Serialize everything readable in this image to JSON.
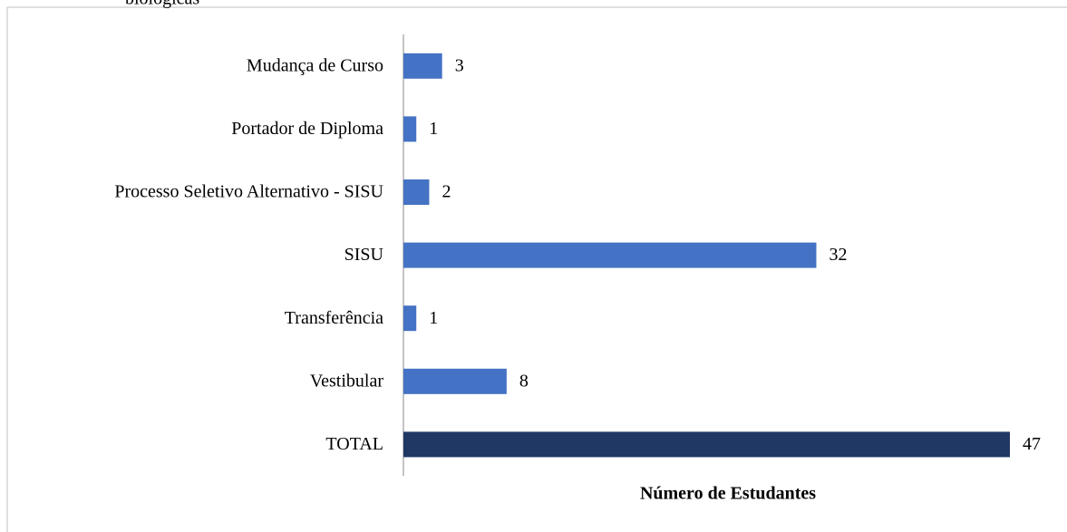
{
  "caption": "biológicas",
  "chart_data": {
    "type": "hbar",
    "xlabel": "Número de Estudantes",
    "categories": [
      "Mudança de Curso",
      "Portador de Diploma",
      "Processo Seletivo Alternativo - SISU",
      "SISU",
      "Transferência",
      "Vestibular",
      "TOTAL"
    ],
    "values": [
      3,
      1,
      2,
      32,
      1,
      8,
      47
    ],
    "colors": [
      "#4472c4",
      "#4472c4",
      "#4472c4",
      "#4472c4",
      "#4472c4",
      "#4472c4",
      "#1f3864"
    ],
    "xlim": [
      0,
      47
    ]
  }
}
